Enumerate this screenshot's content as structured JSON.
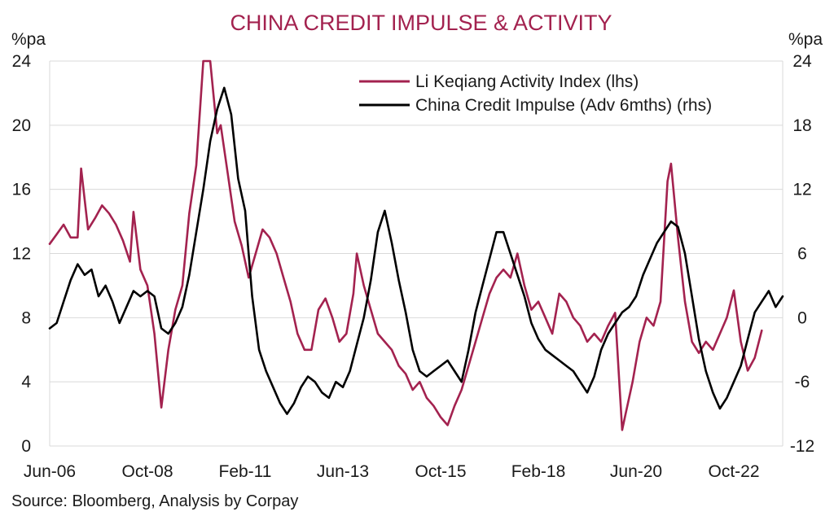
{
  "chart_data": {
    "type": "line",
    "title": "CHINA CREDIT IMPULSE & ACTIVITY",
    "left_unit": "%pa",
    "right_unit": "%pa",
    "source": "Source: Bloomberg, Analysis by Corpay",
    "x_range": [
      "2006-06",
      "2023-12"
    ],
    "x_ticks": [
      {
        "label": "Jun-06",
        "date": "2006-06"
      },
      {
        "label": "Oct-08",
        "date": "2008-10"
      },
      {
        "label": "Feb-11",
        "date": "2011-02"
      },
      {
        "label": "Jun-13",
        "date": "2013-06"
      },
      {
        "label": "Oct-15",
        "date": "2015-10"
      },
      {
        "label": "Feb-18",
        "date": "2018-02"
      },
      {
        "label": "Jun-20",
        "date": "2020-06"
      },
      {
        "label": "Oct-22",
        "date": "2022-10"
      }
    ],
    "y_left": {
      "min": 0,
      "max": 24,
      "ticks": [
        "0",
        "4",
        "8",
        "12",
        "16",
        "20",
        "24"
      ]
    },
    "y_right": {
      "min": -12,
      "max": 24,
      "ticks": [
        "-12",
        "-6",
        "0",
        "6",
        "12",
        "18",
        "24"
      ]
    },
    "grid": "horizontal",
    "legend_position": "top-right",
    "series": [
      {
        "name": "Li Keqiang Activity Index (lhs)",
        "axis": "left",
        "color": "#a3224f",
        "points": [
          [
            "2006-06",
            12.6
          ],
          [
            "2006-08",
            13.2
          ],
          [
            "2006-10",
            13.8
          ],
          [
            "2006-12",
            13.0
          ],
          [
            "2007-02",
            13.0
          ],
          [
            "2007-03",
            17.3
          ],
          [
            "2007-05",
            13.5
          ],
          [
            "2007-07",
            14.2
          ],
          [
            "2007-09",
            15.0
          ],
          [
            "2007-11",
            14.5
          ],
          [
            "2008-01",
            13.8
          ],
          [
            "2008-03",
            12.8
          ],
          [
            "2008-05",
            11.5
          ],
          [
            "2008-06",
            14.6
          ],
          [
            "2008-08",
            11.0
          ],
          [
            "2008-10",
            10.0
          ],
          [
            "2008-12",
            7.0
          ],
          [
            "2009-02",
            2.4
          ],
          [
            "2009-04",
            6.0
          ],
          [
            "2009-06",
            8.5
          ],
          [
            "2009-08",
            10.0
          ],
          [
            "2009-10",
            14.5
          ],
          [
            "2009-12",
            17.5
          ],
          [
            "2010-02",
            24.0
          ],
          [
            "2010-04",
            24.0
          ],
          [
            "2010-06",
            19.5
          ],
          [
            "2010-07",
            20.0
          ],
          [
            "2010-09",
            17.0
          ],
          [
            "2010-11",
            14.0
          ],
          [
            "2011-01",
            12.5
          ],
          [
            "2011-03",
            10.5
          ],
          [
            "2011-05",
            12.0
          ],
          [
            "2011-07",
            13.5
          ],
          [
            "2011-09",
            13.0
          ],
          [
            "2011-11",
            12.0
          ],
          [
            "2012-01",
            10.5
          ],
          [
            "2012-03",
            9.0
          ],
          [
            "2012-05",
            7.0
          ],
          [
            "2012-07",
            6.0
          ],
          [
            "2012-09",
            6.0
          ],
          [
            "2012-11",
            8.5
          ],
          [
            "2013-01",
            9.2
          ],
          [
            "2013-03",
            8.0
          ],
          [
            "2013-05",
            6.5
          ],
          [
            "2013-07",
            7.0
          ],
          [
            "2013-09",
            9.5
          ],
          [
            "2013-10",
            12.0
          ],
          [
            "2013-12",
            10.0
          ],
          [
            "2014-02",
            8.5
          ],
          [
            "2014-04",
            7.0
          ],
          [
            "2014-06",
            6.5
          ],
          [
            "2014-08",
            6.0
          ],
          [
            "2014-10",
            5.0
          ],
          [
            "2014-12",
            4.5
          ],
          [
            "2015-02",
            3.5
          ],
          [
            "2015-04",
            4.0
          ],
          [
            "2015-06",
            3.0
          ],
          [
            "2015-08",
            2.5
          ],
          [
            "2015-10",
            1.8
          ],
          [
            "2015-12",
            1.3
          ],
          [
            "2016-02",
            2.5
          ],
          [
            "2016-04",
            3.5
          ],
          [
            "2016-06",
            5.0
          ],
          [
            "2016-08",
            6.5
          ],
          [
            "2016-10",
            8.0
          ],
          [
            "2016-12",
            9.5
          ],
          [
            "2017-02",
            10.5
          ],
          [
            "2017-04",
            11.0
          ],
          [
            "2017-06",
            10.5
          ],
          [
            "2017-08",
            12.0
          ],
          [
            "2017-10",
            10.0
          ],
          [
            "2017-12",
            8.5
          ],
          [
            "2018-02",
            9.0
          ],
          [
            "2018-04",
            8.0
          ],
          [
            "2018-06",
            7.0
          ],
          [
            "2018-08",
            9.5
          ],
          [
            "2018-10",
            9.0
          ],
          [
            "2018-12",
            8.0
          ],
          [
            "2019-02",
            7.5
          ],
          [
            "2019-04",
            6.5
          ],
          [
            "2019-06",
            7.0
          ],
          [
            "2019-08",
            6.5
          ],
          [
            "2019-10",
            7.5
          ],
          [
            "2019-12",
            8.3
          ],
          [
            "2020-02",
            1.0
          ],
          [
            "2020-03",
            2.0
          ],
          [
            "2020-05",
            4.0
          ],
          [
            "2020-07",
            6.5
          ],
          [
            "2020-09",
            8.0
          ],
          [
            "2020-11",
            7.5
          ],
          [
            "2021-01",
            9.0
          ],
          [
            "2021-03",
            16.5
          ],
          [
            "2021-04",
            17.6
          ],
          [
            "2021-06",
            13.0
          ],
          [
            "2021-08",
            9.0
          ],
          [
            "2021-10",
            6.5
          ],
          [
            "2021-12",
            5.8
          ],
          [
            "2022-02",
            6.5
          ],
          [
            "2022-04",
            6.0
          ],
          [
            "2022-06",
            7.0
          ],
          [
            "2022-08",
            8.0
          ],
          [
            "2022-10",
            9.7
          ],
          [
            "2022-12",
            6.5
          ],
          [
            "2023-02",
            4.7
          ],
          [
            "2023-04",
            5.5
          ],
          [
            "2023-06",
            7.2
          ]
        ]
      },
      {
        "name": "China Credit Impulse (Adv 6mths) (rhs)",
        "axis": "right",
        "color": "#000000",
        "points": [
          [
            "2006-06",
            -1.0
          ],
          [
            "2006-08",
            -0.5
          ],
          [
            "2006-10",
            1.5
          ],
          [
            "2006-12",
            3.5
          ],
          [
            "2007-02",
            5.0
          ],
          [
            "2007-04",
            4.0
          ],
          [
            "2007-06",
            4.5
          ],
          [
            "2007-08",
            2.0
          ],
          [
            "2007-10",
            3.0
          ],
          [
            "2007-12",
            1.5
          ],
          [
            "2008-02",
            -0.5
          ],
          [
            "2008-04",
            1.0
          ],
          [
            "2008-06",
            2.5
          ],
          [
            "2008-08",
            2.0
          ],
          [
            "2008-10",
            2.5
          ],
          [
            "2008-12",
            2.0
          ],
          [
            "2009-02",
            -1.0
          ],
          [
            "2009-04",
            -1.5
          ],
          [
            "2009-06",
            -0.5
          ],
          [
            "2009-08",
            1.0
          ],
          [
            "2009-10",
            4.0
          ],
          [
            "2009-12",
            8.0
          ],
          [
            "2010-02",
            12.0
          ],
          [
            "2010-04",
            16.5
          ],
          [
            "2010-06",
            19.5
          ],
          [
            "2010-08",
            21.5
          ],
          [
            "2010-10",
            19.0
          ],
          [
            "2010-12",
            13.0
          ],
          [
            "2011-02",
            10.0
          ],
          [
            "2011-04",
            2.0
          ],
          [
            "2011-06",
            -3.0
          ],
          [
            "2011-08",
            -5.0
          ],
          [
            "2011-10",
            -6.5
          ],
          [
            "2011-12",
            -8.0
          ],
          [
            "2012-02",
            -9.0
          ],
          [
            "2012-04",
            -8.0
          ],
          [
            "2012-06",
            -6.5
          ],
          [
            "2012-08",
            -5.5
          ],
          [
            "2012-10",
            -6.0
          ],
          [
            "2012-12",
            -7.0
          ],
          [
            "2013-02",
            -7.5
          ],
          [
            "2013-04",
            -6.0
          ],
          [
            "2013-06",
            -6.5
          ],
          [
            "2013-08",
            -5.0
          ],
          [
            "2013-10",
            -2.5
          ],
          [
            "2013-12",
            0.0
          ],
          [
            "2014-02",
            3.5
          ],
          [
            "2014-04",
            8.0
          ],
          [
            "2014-06",
            10.0
          ],
          [
            "2014-08",
            7.0
          ],
          [
            "2014-10",
            3.5
          ],
          [
            "2014-12",
            0.5
          ],
          [
            "2015-02",
            -3.0
          ],
          [
            "2015-04",
            -5.0
          ],
          [
            "2015-06",
            -5.5
          ],
          [
            "2015-08",
            -5.0
          ],
          [
            "2015-10",
            -4.5
          ],
          [
            "2015-12",
            -4.0
          ],
          [
            "2016-02",
            -5.0
          ],
          [
            "2016-04",
            -6.0
          ],
          [
            "2016-06",
            -3.0
          ],
          [
            "2016-08",
            0.5
          ],
          [
            "2016-10",
            3.0
          ],
          [
            "2016-12",
            5.5
          ],
          [
            "2017-02",
            8.0
          ],
          [
            "2017-04",
            8.0
          ],
          [
            "2017-06",
            6.0
          ],
          [
            "2017-08",
            4.0
          ],
          [
            "2017-10",
            2.0
          ],
          [
            "2017-12",
            -0.5
          ],
          [
            "2018-02",
            -2.0
          ],
          [
            "2018-04",
            -3.0
          ],
          [
            "2018-06",
            -3.5
          ],
          [
            "2018-08",
            -4.0
          ],
          [
            "2018-10",
            -4.5
          ],
          [
            "2018-12",
            -5.0
          ],
          [
            "2019-02",
            -6.0
          ],
          [
            "2019-04",
            -7.0
          ],
          [
            "2019-06",
            -5.5
          ],
          [
            "2019-08",
            -3.0
          ],
          [
            "2019-10",
            -1.5
          ],
          [
            "2019-12",
            -0.5
          ],
          [
            "2020-02",
            0.5
          ],
          [
            "2020-04",
            1.0
          ],
          [
            "2020-06",
            2.0
          ],
          [
            "2020-08",
            4.0
          ],
          [
            "2020-10",
            5.5
          ],
          [
            "2020-12",
            7.0
          ],
          [
            "2021-02",
            8.0
          ],
          [
            "2021-04",
            9.0
          ],
          [
            "2021-06",
            8.5
          ],
          [
            "2021-08",
            6.0
          ],
          [
            "2021-10",
            2.0
          ],
          [
            "2021-12",
            -2.0
          ],
          [
            "2022-02",
            -5.0
          ],
          [
            "2022-04",
            -7.0
          ],
          [
            "2022-06",
            -8.5
          ],
          [
            "2022-08",
            -7.5
          ],
          [
            "2022-10",
            -6.0
          ],
          [
            "2022-12",
            -4.5
          ],
          [
            "2023-02",
            -2.0
          ],
          [
            "2023-04",
            0.5
          ],
          [
            "2023-06",
            1.5
          ],
          [
            "2023-08",
            2.5
          ],
          [
            "2023-10",
            1.0
          ],
          [
            "2023-12",
            2.0
          ]
        ]
      }
    ]
  }
}
